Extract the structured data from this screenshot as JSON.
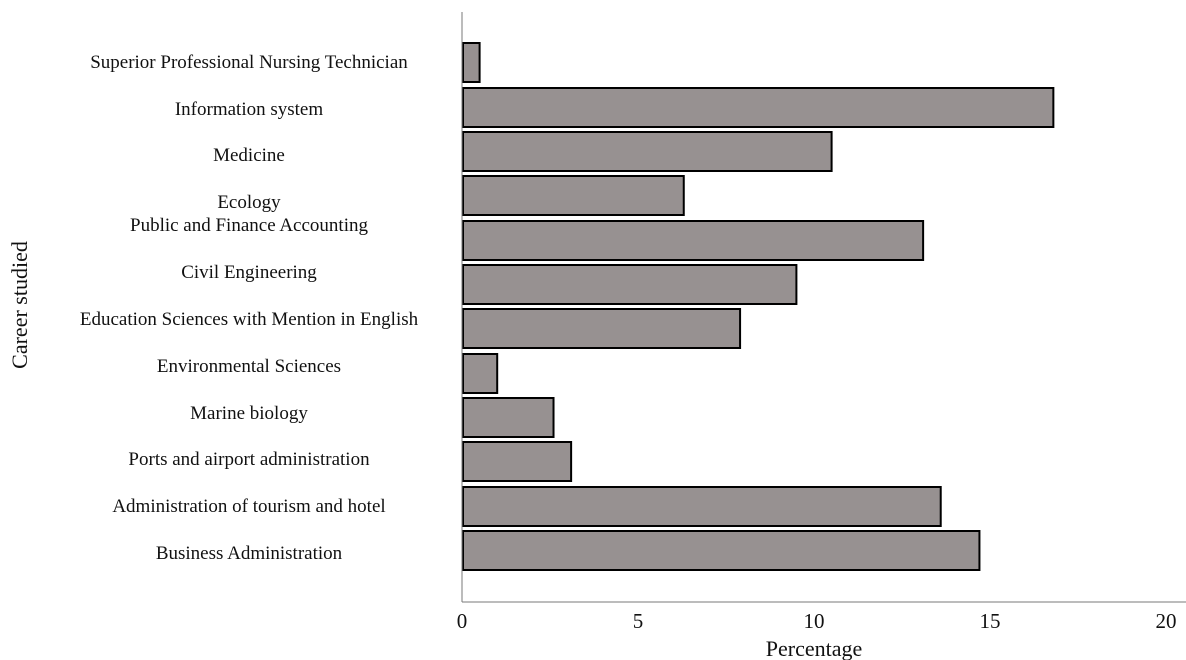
{
  "chart_data": {
    "type": "bar",
    "orientation": "horizontal",
    "xlabel": "Percentage",
    "ylabel": "Career studied",
    "xlim": [
      0,
      20
    ],
    "xticks": [
      0,
      5,
      10,
      15,
      20
    ],
    "grid": false,
    "bar_color": "#979191",
    "bar_edge_color": "#000000",
    "categories": [
      "Superior Professional Nursing Technician",
      "Information system",
      "Medicine",
      "Ecology",
      "Public and Finance Accounting",
      "Civil Engineering",
      "Education Sciences with Mention in English",
      "Environmental Sciences",
      "Marine biology",
      "Ports and airport administration",
      "Administration of tourism and hotel",
      "Business Administration"
    ],
    "values": [
      0.5,
      16.8,
      10.5,
      6.3,
      13.1,
      9.5,
      7.9,
      1.0,
      2.6,
      3.1,
      13.6,
      14.7
    ]
  }
}
